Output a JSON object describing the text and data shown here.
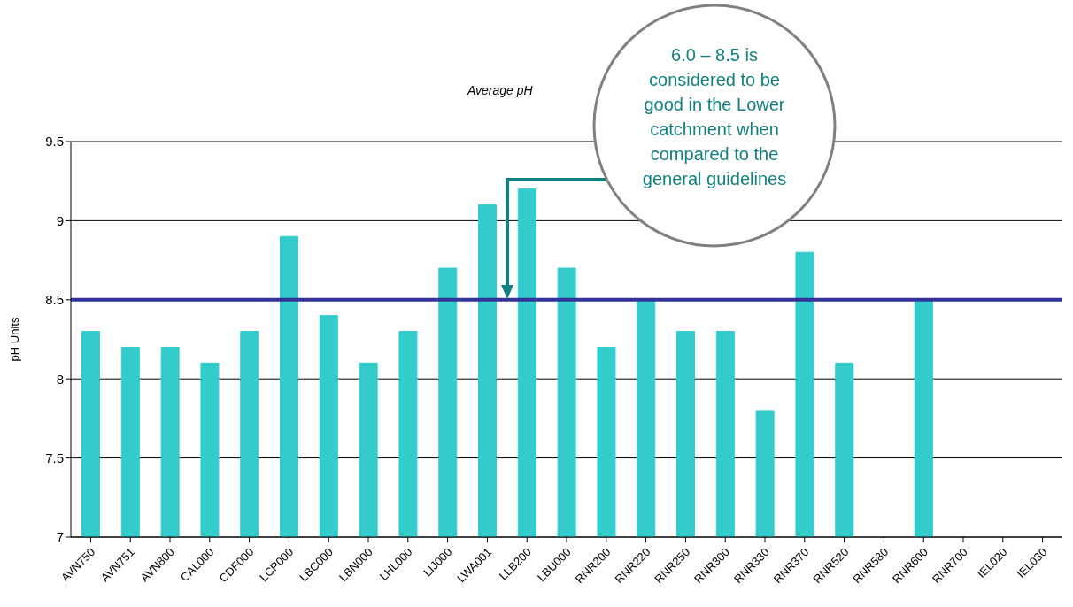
{
  "chart_data": {
    "type": "bar",
    "title": "Average pH",
    "ylabel": "pH Units",
    "categories": [
      "AVN750",
      "AVN751",
      "AVN800",
      "CAL000",
      "CDF000",
      "LCP000",
      "LBC000",
      "LBN000",
      "LHL000",
      "LIJ000",
      "LWA001",
      "LLB200",
      "LBU000",
      "RNR200",
      "RNR220",
      "RNR250",
      "RNR300",
      "RNR330",
      "RNR370",
      "RNR520",
      "RNR580",
      "RNR600",
      "RNR700",
      "IEL020",
      "IEL030"
    ],
    "values": [
      8.3,
      8.2,
      8.2,
      8.1,
      8.3,
      8.9,
      8.4,
      8.1,
      8.3,
      8.7,
      9.1,
      9.2,
      8.7,
      8.2,
      8.5,
      8.3,
      8.3,
      7.8,
      8.8,
      8.1,
      null,
      8.5,
      null,
      null,
      null
    ],
    "color": "#33cccc",
    "ylim": [
      7,
      9.5
    ],
    "yticks": [
      7,
      7.5,
      8,
      8.5,
      9,
      9.5
    ],
    "grid": "y",
    "legend": false,
    "ref_lines": [
      {
        "axis": "y",
        "value": 8.5,
        "label": null,
        "color": "#333399"
      }
    ],
    "annotations": [
      "6.0 – 8.5 is considered to be good in the Lower catchment when compared to the general guidelines"
    ]
  }
}
